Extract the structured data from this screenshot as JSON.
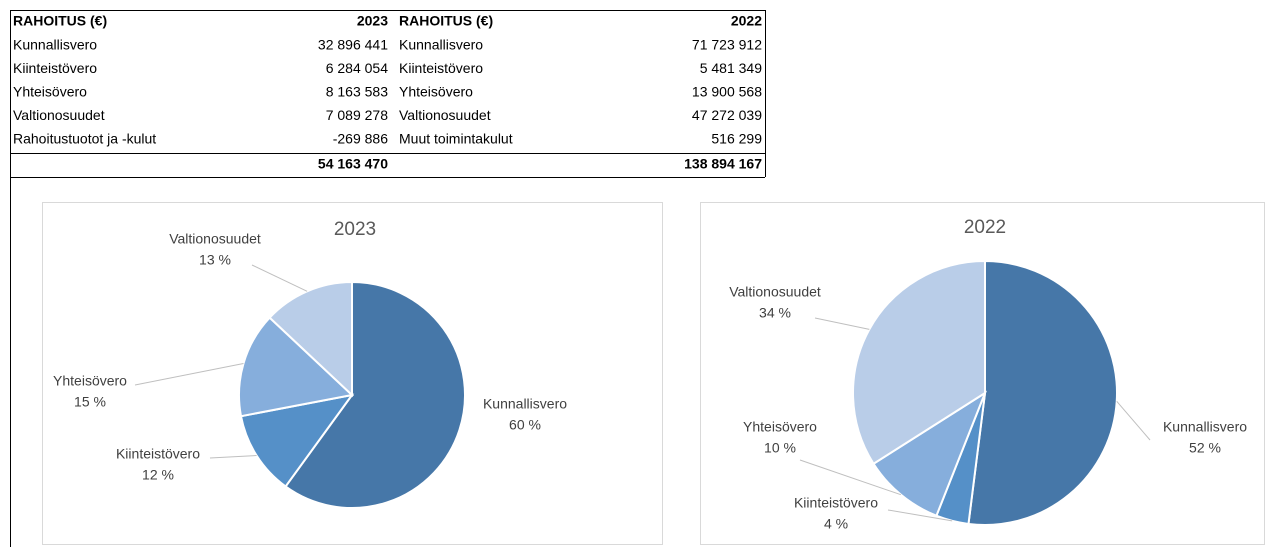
{
  "table": {
    "left": {
      "header": [
        "RAHOITUS (€)",
        "2023"
      ],
      "rows": [
        [
          "Kunnallisvero",
          "32 896 441"
        ],
        [
          "Kiinteistövero",
          "6 284 054"
        ],
        [
          "Yhteisövero",
          "8 163 583"
        ],
        [
          "Valtionosuudet",
          "7 089 278"
        ],
        [
          "Rahoitustuotot ja -kulut",
          "-269 886"
        ]
      ],
      "total": "54 163 470"
    },
    "right": {
      "header": [
        "RAHOITUS (€)",
        "2022"
      ],
      "rows": [
        [
          "Kunnallisvero",
          "71 723 912"
        ],
        [
          "Kiinteistövero",
          "5 481 349"
        ],
        [
          "Yhteisövero",
          "13 900 568"
        ],
        [
          "Valtionosuudet",
          "47 272 039"
        ],
        [
          "Muut toimintakulut",
          "516 299"
        ]
      ],
      "total": "138 894 167"
    }
  },
  "chart_data": [
    {
      "type": "pie",
      "title": "2023",
      "categories": [
        "Kunnallisvero",
        "Kiinteistövero",
        "Yhteisövero",
        "Valtionosuudet"
      ],
      "values": [
        60,
        12,
        15,
        13
      ],
      "value_labels": [
        "60 %",
        "12 %",
        "15 %",
        "13 %"
      ],
      "colors": [
        "#4677a8",
        "#5590c8",
        "#86aedc",
        "#b9cde8"
      ]
    },
    {
      "type": "pie",
      "title": "2022",
      "categories": [
        "Kunnallisvero",
        "Kiinteistövero",
        "Yhteisövero",
        "Valtionosuudet"
      ],
      "values": [
        52,
        4,
        10,
        34
      ],
      "value_labels": [
        "52 %",
        "4 %",
        "10 %",
        "34 %"
      ],
      "colors": [
        "#4677a8",
        "#5590c8",
        "#86aedc",
        "#b9cde8"
      ]
    }
  ]
}
